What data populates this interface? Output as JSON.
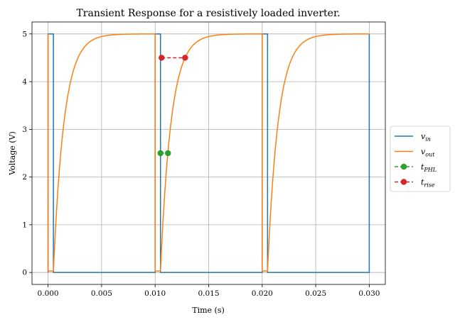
{
  "chart_data": {
    "type": "line",
    "title": "Transient Response for a resistively loaded inverter.",
    "xlabel": "Time (s)",
    "ylabel": "Voltage (V)",
    "xlim": [
      -0.0015,
      0.0315
    ],
    "ylim": [
      -0.25,
      5.25
    ],
    "xticks": [
      0.0,
      0.005,
      0.01,
      0.015,
      0.02,
      0.025,
      0.03
    ],
    "xtick_labels": [
      "0.000",
      "0.005",
      "0.010",
      "0.015",
      "0.020",
      "0.025",
      "0.030"
    ],
    "yticks": [
      0,
      1,
      2,
      3,
      4,
      5
    ],
    "ytick_labels": [
      "0",
      "1",
      "2",
      "3",
      "4",
      "5"
    ],
    "grid": true,
    "legend_position": "right-outside-center",
    "series": [
      {
        "name": "v",
        "name_sub": "in",
        "color": "#1f77b4",
        "style": "solid",
        "kind": "square_wave",
        "high": 5.0,
        "low": 0.0,
        "pulses": [
          [
            0.0,
            0.0005
          ],
          [
            0.01,
            0.0105
          ],
          [
            0.02,
            0.0205
          ],
          [
            0.03,
            0.03
          ]
        ]
      },
      {
        "name": "v",
        "name_sub": "out",
        "color": "#ff7f0e",
        "style": "solid",
        "kind": "inverter_output",
        "high": 5.0,
        "low_level": 0.03,
        "low_windows": [
          [
            0.0,
            0.0005
          ],
          [
            0.01,
            0.0105
          ],
          [
            0.02,
            0.0205
          ]
        ],
        "time_constant": 0.001
      },
      {
        "name": "t",
        "name_sub": "PHL",
        "color": "#2ca02c",
        "style": "dashed",
        "marker": "circle",
        "points": [
          [
            0.0105,
            2.5
          ],
          [
            0.0112,
            2.5
          ]
        ]
      },
      {
        "name": "t",
        "name_sub": "rise",
        "color": "#d62728",
        "style": "dashed",
        "marker": "circle",
        "points": [
          [
            0.0106,
            4.5
          ],
          [
            0.0128,
            4.5
          ]
        ]
      }
    ]
  }
}
